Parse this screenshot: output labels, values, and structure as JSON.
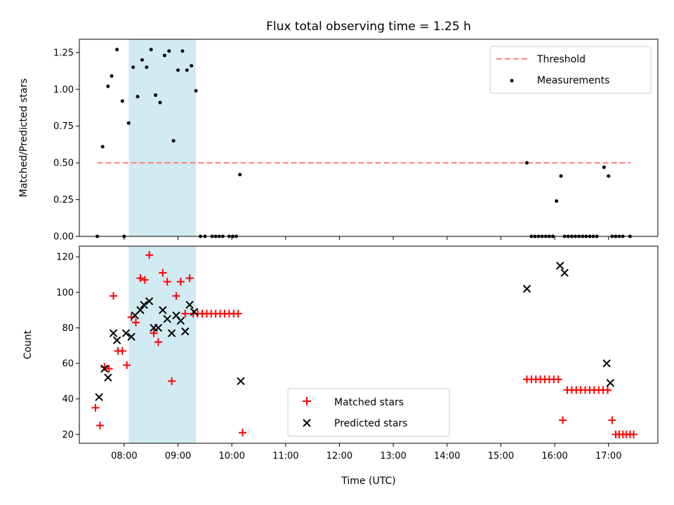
{
  "figure_title": "Flux total observing time = 1.25 h",
  "xlabel": "Time (UTC)",
  "x_ticks": [
    "08:00",
    "09:00",
    "10:00",
    "11:00",
    "12:00",
    "13:00",
    "14:00",
    "15:00",
    "16:00",
    "17:00"
  ],
  "colors": {
    "threshold": "#ff7070",
    "measurements": "#000000",
    "matched": "#ff0000",
    "predicted": "#000000",
    "shade": "#add8e6"
  },
  "chart_data": [
    {
      "type": "scatter",
      "ylabel": "Matched/Predicted stars",
      "xlim": [
        "07:10",
        "17:55"
      ],
      "ylim": [
        0,
        1.34
      ],
      "y_ticks": [
        "0.00",
        "0.25",
        "0.50",
        "0.75",
        "1.00",
        "1.25"
      ],
      "shaded_interval": [
        "08:05",
        "09:20"
      ],
      "threshold": {
        "name": "Threshold",
        "value": 0.5,
        "x_start": "07:30",
        "x_end": "17:25"
      },
      "legend": {
        "placement": "upper right",
        "entries": [
          "Threshold",
          "Measurements"
        ]
      },
      "series": [
        {
          "name": "Measurements",
          "points": [
            [
              "07:30",
              0.0
            ],
            [
              "07:36",
              0.61
            ],
            [
              "07:42",
              1.02
            ],
            [
              "07:46",
              1.09
            ],
            [
              "07:52",
              1.27
            ],
            [
              "07:58",
              0.92
            ],
            [
              "08:00",
              0.0
            ],
            [
              "08:05",
              0.77
            ],
            [
              "08:10",
              1.15
            ],
            [
              "08:15",
              0.95
            ],
            [
              "08:20",
              1.2
            ],
            [
              "08:25",
              1.15
            ],
            [
              "08:30",
              1.27
            ],
            [
              "08:35",
              0.96
            ],
            [
              "08:40",
              0.91
            ],
            [
              "08:45",
              1.23
            ],
            [
              "08:50",
              1.26
            ],
            [
              "08:55",
              0.65
            ],
            [
              "09:00",
              1.13
            ],
            [
              "09:05",
              1.26
            ],
            [
              "09:10",
              1.13
            ],
            [
              "09:15",
              1.16
            ],
            [
              "09:20",
              0.99
            ],
            [
              "09:25",
              0.0
            ],
            [
              "09:30",
              0.0
            ],
            [
              "09:38",
              0.0
            ],
            [
              "09:42",
              0.0
            ],
            [
              "09:46",
              0.0
            ],
            [
              "09:50",
              0.0
            ],
            [
              "09:57",
              0.0
            ],
            [
              "10:01",
              0.0
            ],
            [
              "10:05",
              0.0
            ],
            [
              "10:09",
              0.42
            ],
            [
              "15:29",
              0.5
            ],
            [
              "15:34",
              0.0
            ],
            [
              "15:38",
              0.0
            ],
            [
              "15:42",
              0.0
            ],
            [
              "15:46",
              0.0
            ],
            [
              "15:50",
              0.0
            ],
            [
              "15:54",
              0.0
            ],
            [
              "15:58",
              0.0
            ],
            [
              "16:02",
              0.24
            ],
            [
              "16:07",
              0.41
            ],
            [
              "16:11",
              0.0
            ],
            [
              "16:15",
              0.0
            ],
            [
              "16:19",
              0.0
            ],
            [
              "16:23",
              0.0
            ],
            [
              "16:27",
              0.0
            ],
            [
              "16:31",
              0.0
            ],
            [
              "16:35",
              0.0
            ],
            [
              "16:39",
              0.0
            ],
            [
              "16:43",
              0.0
            ],
            [
              "16:47",
              0.0
            ],
            [
              "16:55",
              0.47
            ],
            [
              "17:00",
              0.41
            ],
            [
              "17:04",
              0.0
            ],
            [
              "17:08",
              0.0
            ],
            [
              "17:12",
              0.0
            ],
            [
              "17:16",
              0.0
            ],
            [
              "17:24",
              0.0
            ]
          ]
        }
      ]
    },
    {
      "type": "scatter",
      "ylabel": "Count",
      "xlim": [
        "07:10",
        "17:55"
      ],
      "ylim": [
        15,
        126
      ],
      "y_ticks": [
        "20",
        "40",
        "60",
        "80",
        "100",
        "120"
      ],
      "shaded_interval": [
        "08:05",
        "09:20"
      ],
      "legend": {
        "placement": "lower center",
        "entries": [
          "Matched stars",
          "Predicted stars"
        ]
      },
      "series": [
        {
          "name": "Matched stars",
          "marker": "plus",
          "points": [
            [
              "07:28",
              35
            ],
            [
              "07:33",
              25
            ],
            [
              "07:38",
              58
            ],
            [
              "07:43",
              57
            ],
            [
              "07:48",
              98
            ],
            [
              "07:53",
              67
            ],
            [
              "07:58",
              67
            ],
            [
              "08:03",
              59
            ],
            [
              "08:08",
              86
            ],
            [
              "08:13",
              83
            ],
            [
              "08:18",
              108
            ],
            [
              "08:23",
              107
            ],
            [
              "08:28",
              121
            ],
            [
              "08:33",
              77
            ],
            [
              "08:38",
              72
            ],
            [
              "08:43",
              111
            ],
            [
              "08:48",
              106
            ],
            [
              "08:53",
              50
            ],
            [
              "08:58",
              98
            ],
            [
              "09:03",
              106
            ],
            [
              "09:08",
              88
            ],
            [
              "09:13",
              108
            ],
            [
              "09:17",
              88
            ],
            [
              "09:22",
              88
            ],
            [
              "09:27",
              88
            ],
            [
              "09:32",
              88
            ],
            [
              "09:37",
              88
            ],
            [
              "09:42",
              88
            ],
            [
              "09:47",
              88
            ],
            [
              "09:52",
              88
            ],
            [
              "09:57",
              88
            ],
            [
              "10:02",
              88
            ],
            [
              "10:07",
              88
            ],
            [
              "10:12",
              21
            ],
            [
              "15:29",
              51
            ],
            [
              "15:34",
              51
            ],
            [
              "15:39",
              51
            ],
            [
              "15:44",
              51
            ],
            [
              "15:49",
              51
            ],
            [
              "15:54",
              51
            ],
            [
              "15:59",
              51
            ],
            [
              "16:04",
              51
            ],
            [
              "16:09",
              28
            ],
            [
              "16:14",
              45
            ],
            [
              "16:19",
              45
            ],
            [
              "16:24",
              45
            ],
            [
              "16:29",
              45
            ],
            [
              "16:34",
              45
            ],
            [
              "16:39",
              45
            ],
            [
              "16:44",
              45
            ],
            [
              "16:49",
              45
            ],
            [
              "16:54",
              45
            ],
            [
              "16:59",
              45
            ],
            [
              "17:04",
              28
            ],
            [
              "17:08",
              20
            ],
            [
              "17:12",
              20
            ],
            [
              "17:16",
              20
            ],
            [
              "17:20",
              20
            ],
            [
              "17:24",
              20
            ],
            [
              "17:28",
              20
            ]
          ]
        },
        {
          "name": "Predicted stars",
          "marker": "x",
          "points": [
            [
              "07:32",
              41
            ],
            [
              "07:38",
              57
            ],
            [
              "07:42",
              52
            ],
            [
              "07:48",
              77
            ],
            [
              "07:52",
              73
            ],
            [
              "08:02",
              77
            ],
            [
              "08:08",
              75
            ],
            [
              "08:12",
              87
            ],
            [
              "08:18",
              90
            ],
            [
              "08:22",
              93
            ],
            [
              "08:28",
              95
            ],
            [
              "08:33",
              80
            ],
            [
              "08:38",
              80
            ],
            [
              "08:43",
              90
            ],
            [
              "08:48",
              85
            ],
            [
              "08:53",
              77
            ],
            [
              "08:58",
              87
            ],
            [
              "09:03",
              84
            ],
            [
              "09:08",
              78
            ],
            [
              "09:13",
              93
            ],
            [
              "09:18",
              89
            ],
            [
              "10:10",
              50
            ],
            [
              "15:29",
              102
            ],
            [
              "16:06",
              115
            ],
            [
              "16:11",
              111
            ],
            [
              "16:58",
              60
            ],
            [
              "17:02",
              49
            ]
          ]
        }
      ]
    }
  ]
}
